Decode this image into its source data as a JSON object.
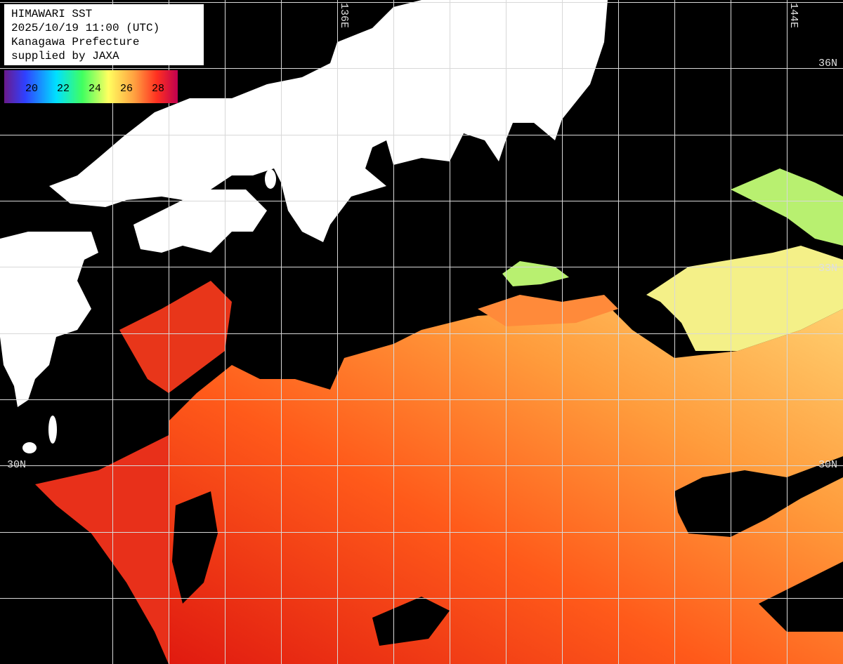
{
  "header": {
    "lines": [
      "HIMAWARI SST",
      "2025/10/19 11:00 (UTC)",
      "Kanagawa Prefecture",
      "supplied by JAXA"
    ]
  },
  "colorbar": {
    "ticks": [
      20,
      22,
      24,
      26,
      28
    ]
  },
  "longitude_labels": [
    "136E",
    "144E"
  ],
  "latitude_labels": [
    "36N",
    "33N",
    "30N",
    "30N"
  ]
}
